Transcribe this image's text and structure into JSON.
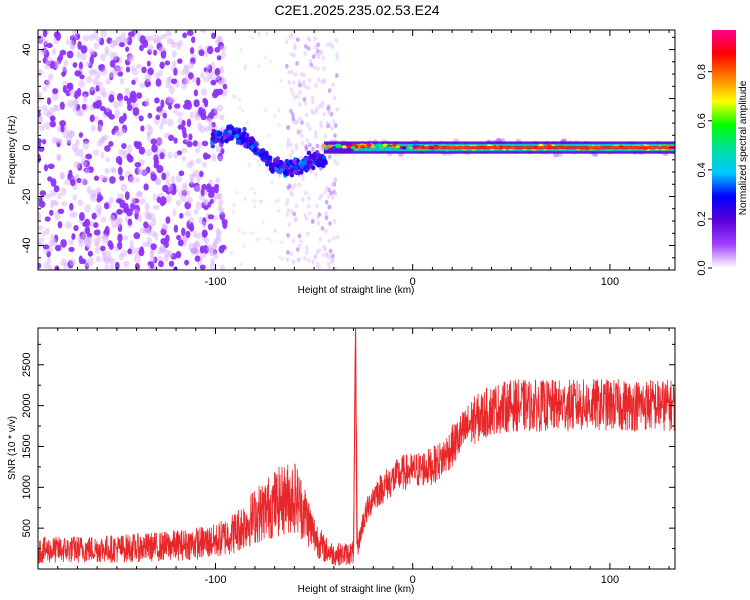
{
  "title": "C2E1.2025.235.02.53.E24",
  "chart_data": [
    {
      "type": "heatmap",
      "name": "spectrogram",
      "xlabel": "Height of straight line (km)",
      "ylabel": "Frequency (Hz)",
      "xlim": [
        -190,
        133
      ],
      "ylim": [
        -50,
        48
      ],
      "xticks": [
        -100,
        0,
        100
      ],
      "yticks": [
        -40,
        -20,
        0,
        20,
        40
      ],
      "colorbar": {
        "label": "Normalized spectral amplitude",
        "range": [
          0,
          0.97
        ],
        "ticks": [
          0.0,
          0.2,
          0.4,
          0.6,
          0.8
        ],
        "colormap": [
          "#ffffff",
          "#a040ff",
          "#5a00d8",
          "#0000ff",
          "#00c8ff",
          "#00e0a0",
          "#00ff00",
          "#ffff00",
          "#ff8000",
          "#ff0000",
          "#ff0090"
        ]
      },
      "description_regions": [
        {
          "x_range": [
            -190,
            -90
          ],
          "freq_range": [
            -50,
            48
          ],
          "amplitude": 0.05,
          "pattern": "scattered purple noise"
        },
        {
          "x_range": [
            -65,
            -40
          ],
          "freq_range": [
            -50,
            48
          ],
          "amplitude": 0.03,
          "pattern": "faint scattered noise band"
        },
        {
          "x_range": [
            -100,
            -45
          ],
          "freq_center": [
            4,
            -10
          ],
          "amplitude": 0.3,
          "pattern": "wavy blue/cyan signal"
        },
        {
          "x_range": [
            -45,
            133
          ],
          "freq_center": 0,
          "amplitude": 0.9,
          "pattern": "strong carrier line near 0 Hz"
        }
      ],
      "annotations": [
        "-100",
        "0",
        "100",
        "-40",
        "-20",
        "0",
        "20",
        "40"
      ]
    },
    {
      "type": "line",
      "name": "snr",
      "xlabel": "Height of straight line (km)",
      "ylabel": "SNR (10 * v/v)",
      "xlim": [
        -190,
        133
      ],
      "ylim": [
        0,
        2950
      ],
      "xticks": [
        -100,
        0,
        100
      ],
      "yticks": [
        500,
        1000,
        1500,
        2000,
        2500
      ],
      "series": [
        {
          "name": "SNR",
          "color": "#e8272a",
          "x": [
            -190,
            -170,
            -150,
            -130,
            -115,
            -100,
            -90,
            -80,
            -70,
            -60,
            -55,
            -50,
            -45,
            -40,
            -35,
            -30,
            -29,
            -28,
            -25,
            -20,
            -15,
            -10,
            -5,
            0,
            5,
            10,
            15,
            20,
            25,
            30,
            40,
            50,
            60,
            70,
            80,
            90,
            100,
            110,
            120,
            133
          ],
          "values": [
            230,
            240,
            250,
            270,
            300,
            340,
            450,
            650,
            800,
            900,
            700,
            420,
            250,
            180,
            180,
            200,
            2900,
            250,
            600,
            900,
            1000,
            1100,
            1180,
            1200,
            1230,
            1260,
            1350,
            1500,
            1650,
            1800,
            1950,
            2000,
            2000,
            2000,
            2000,
            2010,
            2010,
            2000,
            2010,
            2000
          ]
        }
      ],
      "annotations": [
        "-100",
        "0",
        "100",
        "500",
        "1000",
        "1500",
        "2000",
        "2500"
      ]
    }
  ]
}
